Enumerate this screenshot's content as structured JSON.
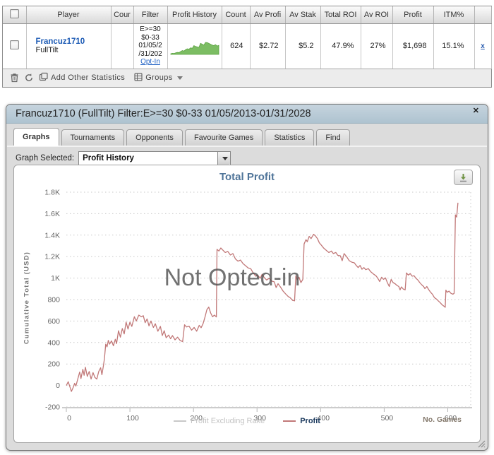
{
  "table": {
    "headers": [
      "",
      "Player",
      "Cour",
      "Filter",
      "Profit History",
      "Count",
      "Av Profi",
      "Av Stak",
      "Total ROI",
      "Av ROI",
      "Profit",
      "ITM%",
      ""
    ],
    "row": {
      "player_name": "Francuz1710",
      "player_site": "FullTilt",
      "filter_lines": [
        "E>=30",
        "$0-33",
        "01/05/2",
        "/31/202"
      ],
      "opt_in_label": "Opt-In",
      "count": "624",
      "av_profit": "$2.72",
      "av_stake": "$5.2",
      "total_roi": "47.9%",
      "av_roi": "27%",
      "profit": "$1,698",
      "itm": "15.1%",
      "remove_label": "x",
      "sparkline_color": "#7cbd63",
      "sparkline_stroke": "#5aa13f",
      "sparkline": [
        8,
        10,
        9,
        12,
        14,
        13,
        18,
        22,
        20,
        26,
        30,
        28,
        34,
        32,
        44,
        40,
        38,
        36,
        54,
        50,
        46,
        58,
        57,
        54,
        50,
        46,
        44,
        48,
        42,
        45
      ]
    },
    "toolbar": {
      "add_stats_label": "Add Other Statistics",
      "groups_label": "Groups"
    }
  },
  "dialog": {
    "title": "Francuz1710 (FullTilt) Filter:E>=30 $0-33 01/05/2013-01/31/2028",
    "close_label": "✕",
    "tabs": [
      "Graphs",
      "Tournaments",
      "Opponents",
      "Favourite Games",
      "Statistics",
      "Find"
    ],
    "active_tab": "Graphs",
    "graph_selected_label": "Graph Selected:",
    "graph_selected_value": "Profit History",
    "watermark": "Not Opted-in"
  },
  "chart_data": {
    "type": "line",
    "title": "Total Profit",
    "xlabel": "No. Games",
    "ylabel": "Cumulative Total (USD)",
    "xlim": [
      0,
      625
    ],
    "ylim": [
      -200,
      1800
    ],
    "grid": "dotted-horizontal",
    "legend_position": "bottom-center",
    "yticks": [
      {
        "v": 1800,
        "label": "1.8K"
      },
      {
        "v": 1600,
        "label": "1.6K"
      },
      {
        "v": 1400,
        "label": "1.4K"
      },
      {
        "v": 1200,
        "label": "1.2K"
      },
      {
        "v": 1000,
        "label": "1K"
      },
      {
        "v": 800,
        "label": "800"
      },
      {
        "v": 600,
        "label": "600"
      },
      {
        "v": 400,
        "label": "400"
      },
      {
        "v": 200,
        "label": "200"
      },
      {
        "v": 0,
        "label": "0"
      },
      {
        "v": -200,
        "label": "-200"
      }
    ],
    "xticks": [
      {
        "v": 0,
        "label": "0"
      },
      {
        "v": 100,
        "label": "100"
      },
      {
        "v": 200,
        "label": "200"
      },
      {
        "v": 300,
        "label": "300"
      },
      {
        "v": 400,
        "label": "400"
      },
      {
        "v": 500,
        "label": "500"
      },
      {
        "v": 600,
        "label": "600"
      }
    ],
    "series": [
      {
        "name": "Profit Excluding Rake",
        "color": "#c8c8c8",
        "visible": false,
        "points": []
      },
      {
        "name": "Profit",
        "color": "#c17878",
        "visible": true,
        "points": [
          [
            0,
            0
          ],
          [
            3,
            35
          ],
          [
            6,
            -20
          ],
          [
            8,
            -55
          ],
          [
            11,
            -15
          ],
          [
            13,
            20
          ],
          [
            15,
            -5
          ],
          [
            18,
            60
          ],
          [
            21,
            125
          ],
          [
            23,
            65
          ],
          [
            26,
            150
          ],
          [
            28,
            95
          ],
          [
            30,
            170
          ],
          [
            33,
            85
          ],
          [
            36,
            130
          ],
          [
            39,
            60
          ],
          [
            42,
            120
          ],
          [
            45,
            75
          ],
          [
            48,
            60
          ],
          [
            51,
            130
          ],
          [
            54,
            165
          ],
          [
            56,
            100
          ],
          [
            58,
            170
          ],
          [
            60,
            250
          ],
          [
            62,
            385
          ],
          [
            64,
            360
          ],
          [
            66,
            420
          ],
          [
            68,
            385
          ],
          [
            71,
            415
          ],
          [
            74,
            370
          ],
          [
            77,
            430
          ],
          [
            79,
            390
          ],
          [
            82,
            510
          ],
          [
            85,
            450
          ],
          [
            88,
            530
          ],
          [
            91,
            480
          ],
          [
            94,
            590
          ],
          [
            97,
            525
          ],
          [
            100,
            590
          ],
          [
            103,
            550
          ],
          [
            107,
            640
          ],
          [
            110,
            600
          ],
          [
            114,
            655
          ],
          [
            118,
            640
          ],
          [
            121,
            650
          ],
          [
            124,
            585
          ],
          [
            127,
            620
          ],
          [
            130,
            555
          ],
          [
            133,
            600
          ],
          [
            137,
            540
          ],
          [
            140,
            575
          ],
          [
            144,
            505
          ],
          [
            148,
            550
          ],
          [
            151,
            465
          ],
          [
            154,
            510
          ],
          [
            157,
            445
          ],
          [
            161,
            470
          ],
          [
            164,
            435
          ],
          [
            167,
            465
          ],
          [
            171,
            425
          ],
          [
            175,
            450
          ],
          [
            179,
            420
          ],
          [
            183,
            408
          ],
          [
            186,
            565
          ],
          [
            189,
            545
          ],
          [
            193,
            552
          ],
          [
            197,
            515
          ],
          [
            201,
            540
          ],
          [
            205,
            505
          ],
          [
            209,
            560
          ],
          [
            212,
            538
          ],
          [
            215,
            575
          ],
          [
            218,
            635
          ],
          [
            221,
            705
          ],
          [
            224,
            730
          ],
          [
            227,
            675
          ],
          [
            230,
            640
          ],
          [
            233,
            655
          ],
          [
            236,
            638
          ],
          [
            237,
            1268
          ],
          [
            240,
            1252
          ],
          [
            243,
            1280
          ],
          [
            246,
            1262
          ],
          [
            250,
            1238
          ],
          [
            254,
            1248
          ],
          [
            258,
            1215
          ],
          [
            262,
            1228
          ],
          [
            266,
            1178
          ],
          [
            270,
            1158
          ],
          [
            274,
            1168
          ],
          [
            278,
            1135
          ],
          [
            282,
            1115
          ],
          [
            286,
            1095
          ],
          [
            290,
            1088
          ],
          [
            294,
            1048
          ],
          [
            298,
            1018
          ],
          [
            301,
            1028
          ],
          [
            305,
            998
          ],
          [
            308,
            1035
          ],
          [
            311,
            1008
          ],
          [
            315,
            982
          ],
          [
            319,
            998
          ],
          [
            323,
            972
          ],
          [
            327,
            965
          ],
          [
            330,
            912
          ],
          [
            333,
            948
          ],
          [
            337,
            915
          ],
          [
            341,
            878
          ],
          [
            345,
            852
          ],
          [
            349,
            828
          ],
          [
            352,
            818
          ],
          [
            356,
            792
          ],
          [
            359,
            788
          ],
          [
            361,
            1022
          ],
          [
            363,
            985
          ],
          [
            366,
            1008
          ],
          [
            369,
            958
          ],
          [
            372,
            988
          ],
          [
            374,
            1318
          ],
          [
            377,
            1358
          ],
          [
            379,
            1338
          ],
          [
            382,
            1388
          ],
          [
            385,
            1368
          ],
          [
            389,
            1408
          ],
          [
            392,
            1392
          ],
          [
            395,
            1368
          ],
          [
            398,
            1328
          ],
          [
            401,
            1308
          ],
          [
            405,
            1278
          ],
          [
            409,
            1258
          ],
          [
            413,
            1238
          ],
          [
            417,
            1252
          ],
          [
            420,
            1228
          ],
          [
            424,
            1238
          ],
          [
            427,
            1212
          ],
          [
            431,
            1208
          ],
          [
            434,
            1162
          ],
          [
            437,
            1228
          ],
          [
            441,
            1198
          ],
          [
            445,
            1162
          ],
          [
            449,
            1148
          ],
          [
            453,
            1142
          ],
          [
            456,
            1118
          ],
          [
            459,
            1098
          ],
          [
            462,
            1118
          ],
          [
            465,
            1082
          ],
          [
            468,
            1098
          ],
          [
            471,
            1078
          ],
          [
            475,
            1088
          ],
          [
            479,
            1058
          ],
          [
            483,
            1038
          ],
          [
            487,
            1022
          ],
          [
            490,
            998
          ],
          [
            493,
            968
          ],
          [
            496,
            1008
          ],
          [
            499,
            988
          ],
          [
            502,
            1002
          ],
          [
            505,
            958
          ],
          [
            508,
            922
          ],
          [
            511,
            988
          ],
          [
            514,
            958
          ],
          [
            517,
            948
          ],
          [
            520,
            932
          ],
          [
            523,
            922
          ],
          [
            525,
            890
          ],
          [
            527,
            918
          ],
          [
            530,
            898
          ],
          [
            533,
            890
          ],
          [
            535,
            1048
          ],
          [
            538,
            1028
          ],
          [
            541,
            1042
          ],
          [
            544,
            1018
          ],
          [
            547,
            1022
          ],
          [
            550,
            998
          ],
          [
            553,
            982
          ],
          [
            556,
            958
          ],
          [
            559,
            938
          ],
          [
            562,
            922
          ],
          [
            564,
            902
          ],
          [
            567,
            922
          ],
          [
            570,
            892
          ],
          [
            573,
            868
          ],
          [
            576,
            848
          ],
          [
            579,
            818
          ],
          [
            582,
            805
          ],
          [
            585,
            788
          ],
          [
            588,
            772
          ],
          [
            591,
            752
          ],
          [
            594,
            738
          ],
          [
            596,
            728
          ],
          [
            597,
            888
          ],
          [
            599,
            868
          ],
          [
            602,
            878
          ],
          [
            605,
            858
          ],
          [
            608,
            850
          ],
          [
            610,
            858
          ],
          [
            612,
            1588
          ],
          [
            614,
            1568
          ],
          [
            616,
            1702
          ]
        ]
      }
    ]
  },
  "colors": {
    "chart_title": "#4f7499",
    "profit_line": "#c17878",
    "sparkline_green": "#7cbd63",
    "link_blue": "#2464c5",
    "dialog_titlebar": "#b9cbd7"
  }
}
